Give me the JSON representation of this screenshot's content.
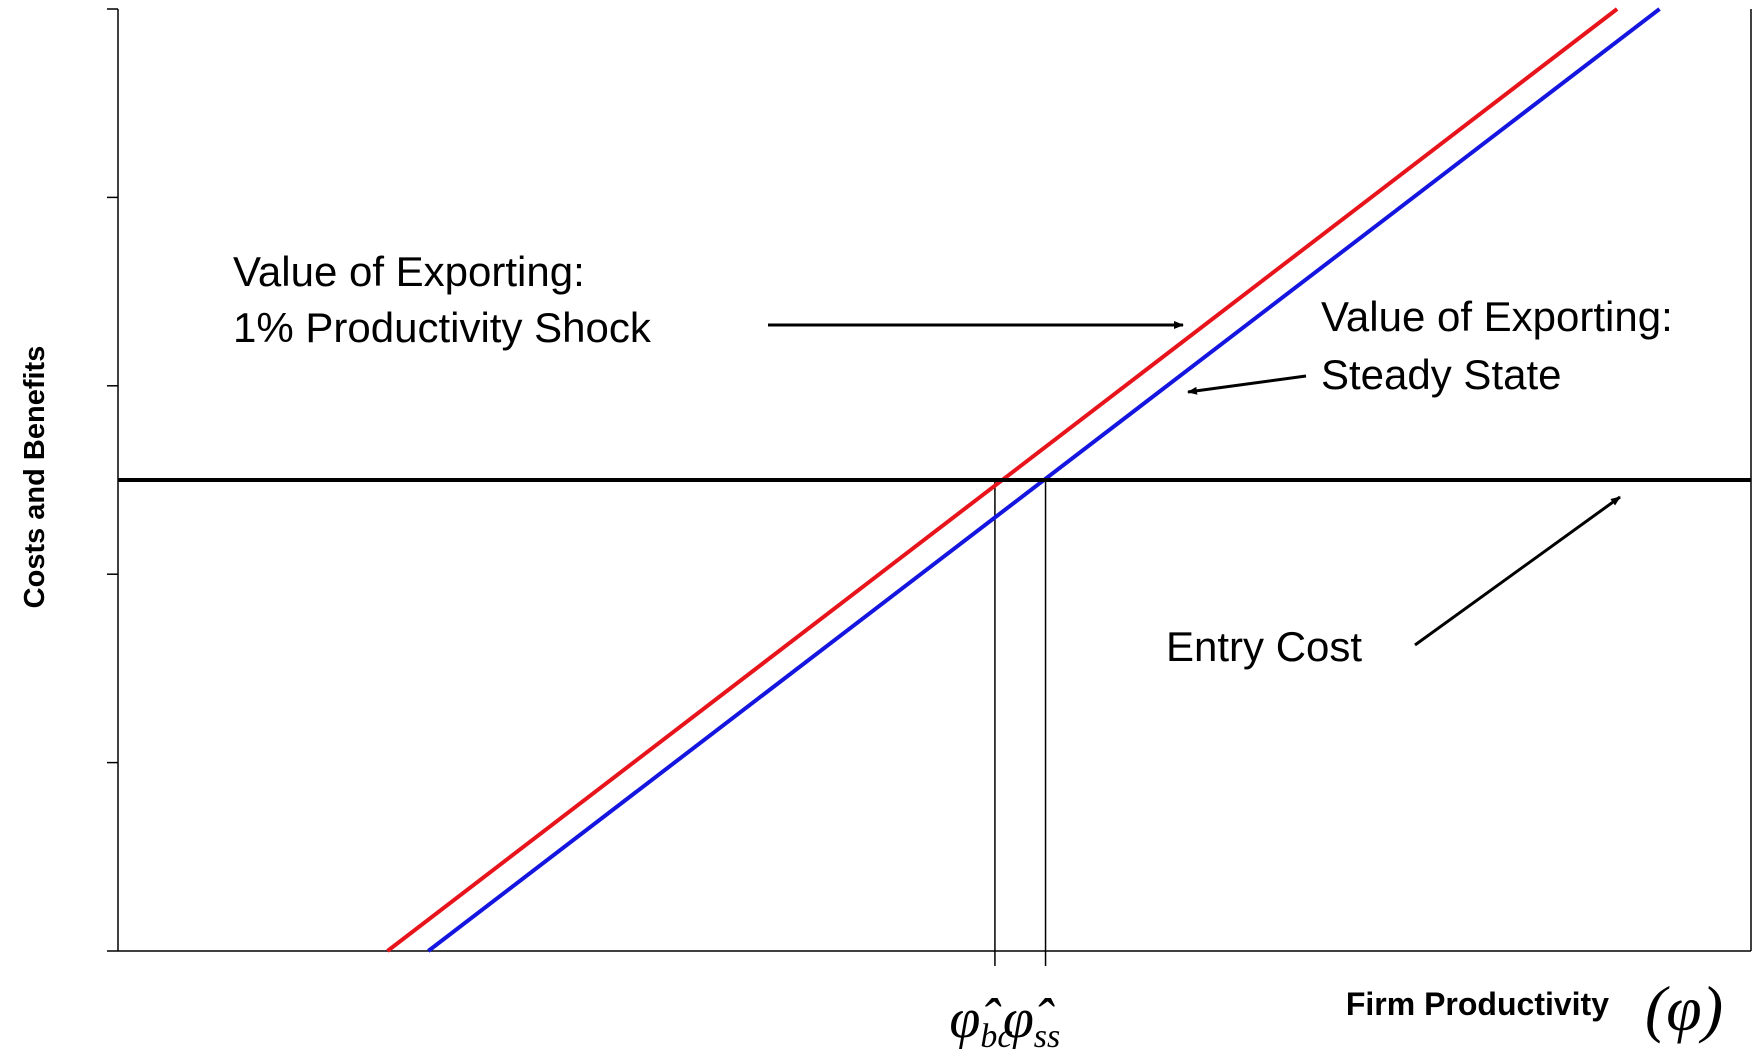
{
  "chart_data": {
    "type": "line",
    "ylabel": "Costs and Benefits",
    "xlabel": "Firm Productivity",
    "xlabel_symbol": "(φ)",
    "xlim": [
      0,
      10
    ],
    "ylim": [
      0,
      5
    ],
    "yticks": [
      0,
      1,
      2,
      3,
      4,
      5
    ],
    "series": [
      {
        "name": [
          "Value of Exporting:",
          "1% Productivity Shock"
        ],
        "color": "#e8141b",
        "x": [
          1.65,
          9.18
        ],
        "values": [
          0,
          5
        ]
      },
      {
        "name": [
          "Value of Exporting:",
          "Steady State"
        ],
        "color": "#1515e0",
        "x": [
          1.9,
          9.44
        ],
        "values": [
          0,
          5
        ]
      },
      {
        "name": [
          "Entry Cost"
        ],
        "color": "#000000",
        "x": [
          0,
          10
        ],
        "values": [
          2.5,
          2.5
        ]
      }
    ],
    "thresholds": [
      {
        "x": 5.37,
        "symbol": "φ̂",
        "subscript": "bc"
      },
      {
        "x": 5.68,
        "symbol": "φ̂",
        "subscript": "ss"
      }
    ]
  }
}
